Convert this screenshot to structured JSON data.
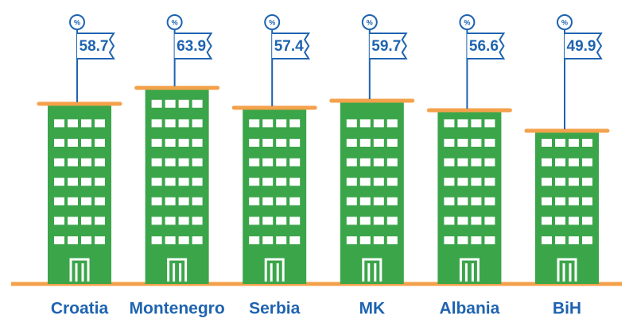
{
  "chart_data": {
    "type": "bar",
    "categories": [
      "Croatia",
      "Montenegro",
      "Serbia",
      "MK",
      "Albania",
      "BiH"
    ],
    "values": [
      58.7,
      63.9,
      57.4,
      59.7,
      56.6,
      49.9
    ],
    "unit_symbol": "%",
    "color": "#3ba54a",
    "roof_color": "#f4a14b",
    "label_color": "#1e63b0"
  }
}
